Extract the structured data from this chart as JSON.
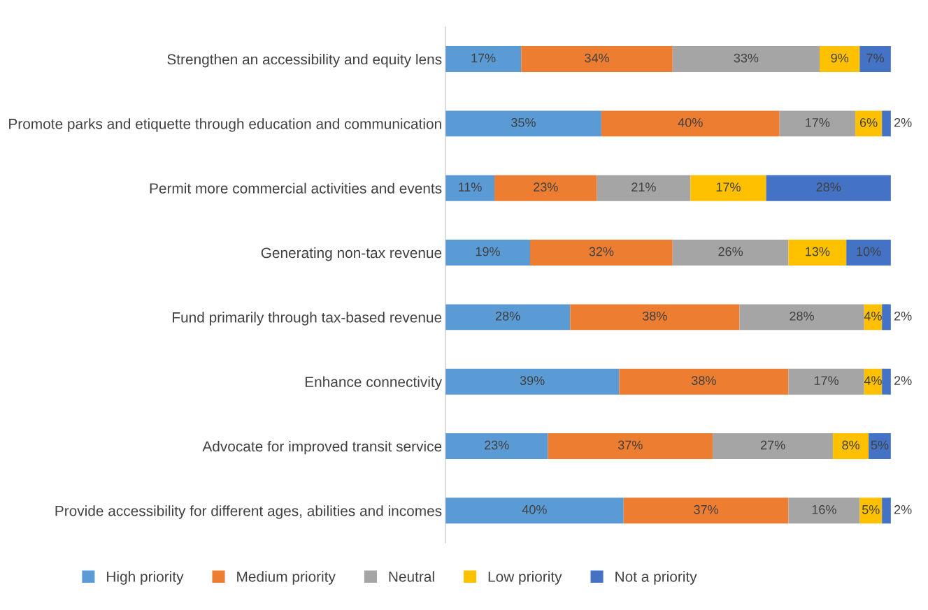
{
  "chart_data": {
    "type": "bar",
    "orientation": "horizontal",
    "stacked": true,
    "categories": [
      "Strengthen an accessibility and equity lens",
      "Promote parks and etiquette through education and communication",
      "Permit more commercial activities and events",
      "Generating non-tax revenue",
      "Fund primarily through tax-based revenue",
      "Enhance connectivity",
      "Advocate for improved transit service",
      "Provide accessibility for different ages, abilities and incomes"
    ],
    "series": [
      {
        "name": "High priority",
        "color": "#5b9bd5",
        "values": [
          17,
          35,
          11,
          19,
          28,
          39,
          23,
          40
        ],
        "value_labels": [
          "17%",
          "35%",
          "11%",
          "19%",
          "28%",
          "39%",
          "23%",
          "40%"
        ]
      },
      {
        "name": "Medium priority",
        "color": "#ed7d31",
        "values": [
          34,
          40,
          23,
          32,
          38,
          38,
          37,
          37
        ],
        "value_labels": [
          "34%",
          "40%",
          "23%",
          "32%",
          "38%",
          "38%",
          "37%",
          "37%"
        ]
      },
      {
        "name": "Neutral",
        "color": "#a5a5a5",
        "values": [
          33,
          17,
          21,
          26,
          28,
          17,
          27,
          16
        ],
        "value_labels": [
          "33%",
          "17%",
          "21%",
          "26%",
          "28%",
          "17%",
          "27%",
          "16%"
        ]
      },
      {
        "name": "Low priority",
        "color": "#ffc000",
        "values": [
          9,
          6,
          17,
          13,
          4,
          4,
          8,
          5
        ],
        "value_labels": [
          "9%",
          "6%",
          "17%",
          "13%",
          "4%",
          "4%",
          "8%",
          "5%"
        ]
      },
      {
        "name": "Not a priority",
        "color": "#4472c4",
        "values": [
          7,
          2,
          28,
          10,
          2,
          2,
          5,
          2
        ],
        "value_labels": [
          "7%",
          "2%",
          "28%",
          "10%",
          "2%",
          "2%",
          "5%",
          "2%"
        ]
      }
    ],
    "legend": "bottom",
    "grid": false,
    "tick_labels": "y"
  }
}
